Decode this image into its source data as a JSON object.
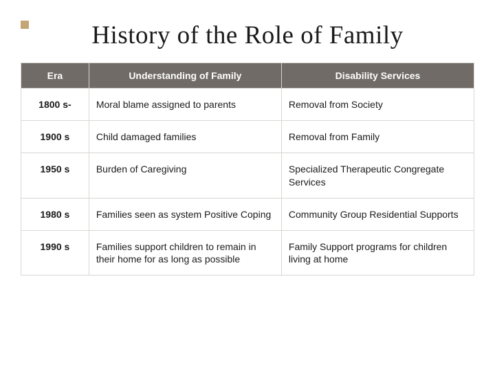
{
  "title": "History of the Role of Family",
  "table": {
    "header_bg": "#706b66",
    "header_fg": "#ffffff",
    "row_bg": "#ffffff",
    "border_color": "#d9d6d1",
    "accent_color": "#c4a676",
    "columns": [
      "Era",
      "Understanding of Family",
      "Disability Services"
    ],
    "rows": [
      {
        "era": "1800 s-",
        "understanding": "Moral blame assigned to parents",
        "services": "Removal from Society"
      },
      {
        "era": "1900 s",
        "understanding": "Child damaged families",
        "services": "Removal from Family"
      },
      {
        "era": "1950 s",
        "understanding": "Burden of Caregiving",
        "services": "Specialized Therapeutic Congregate Services"
      },
      {
        "era": "1980 s",
        "understanding": "Families seen as system Positive Coping",
        "services": "Community Group Residential Supports"
      },
      {
        "era": "1990 s",
        "understanding": "Families support children to remain in their home for as long as possible",
        "services": "Family Support programs for children living at home"
      }
    ]
  }
}
